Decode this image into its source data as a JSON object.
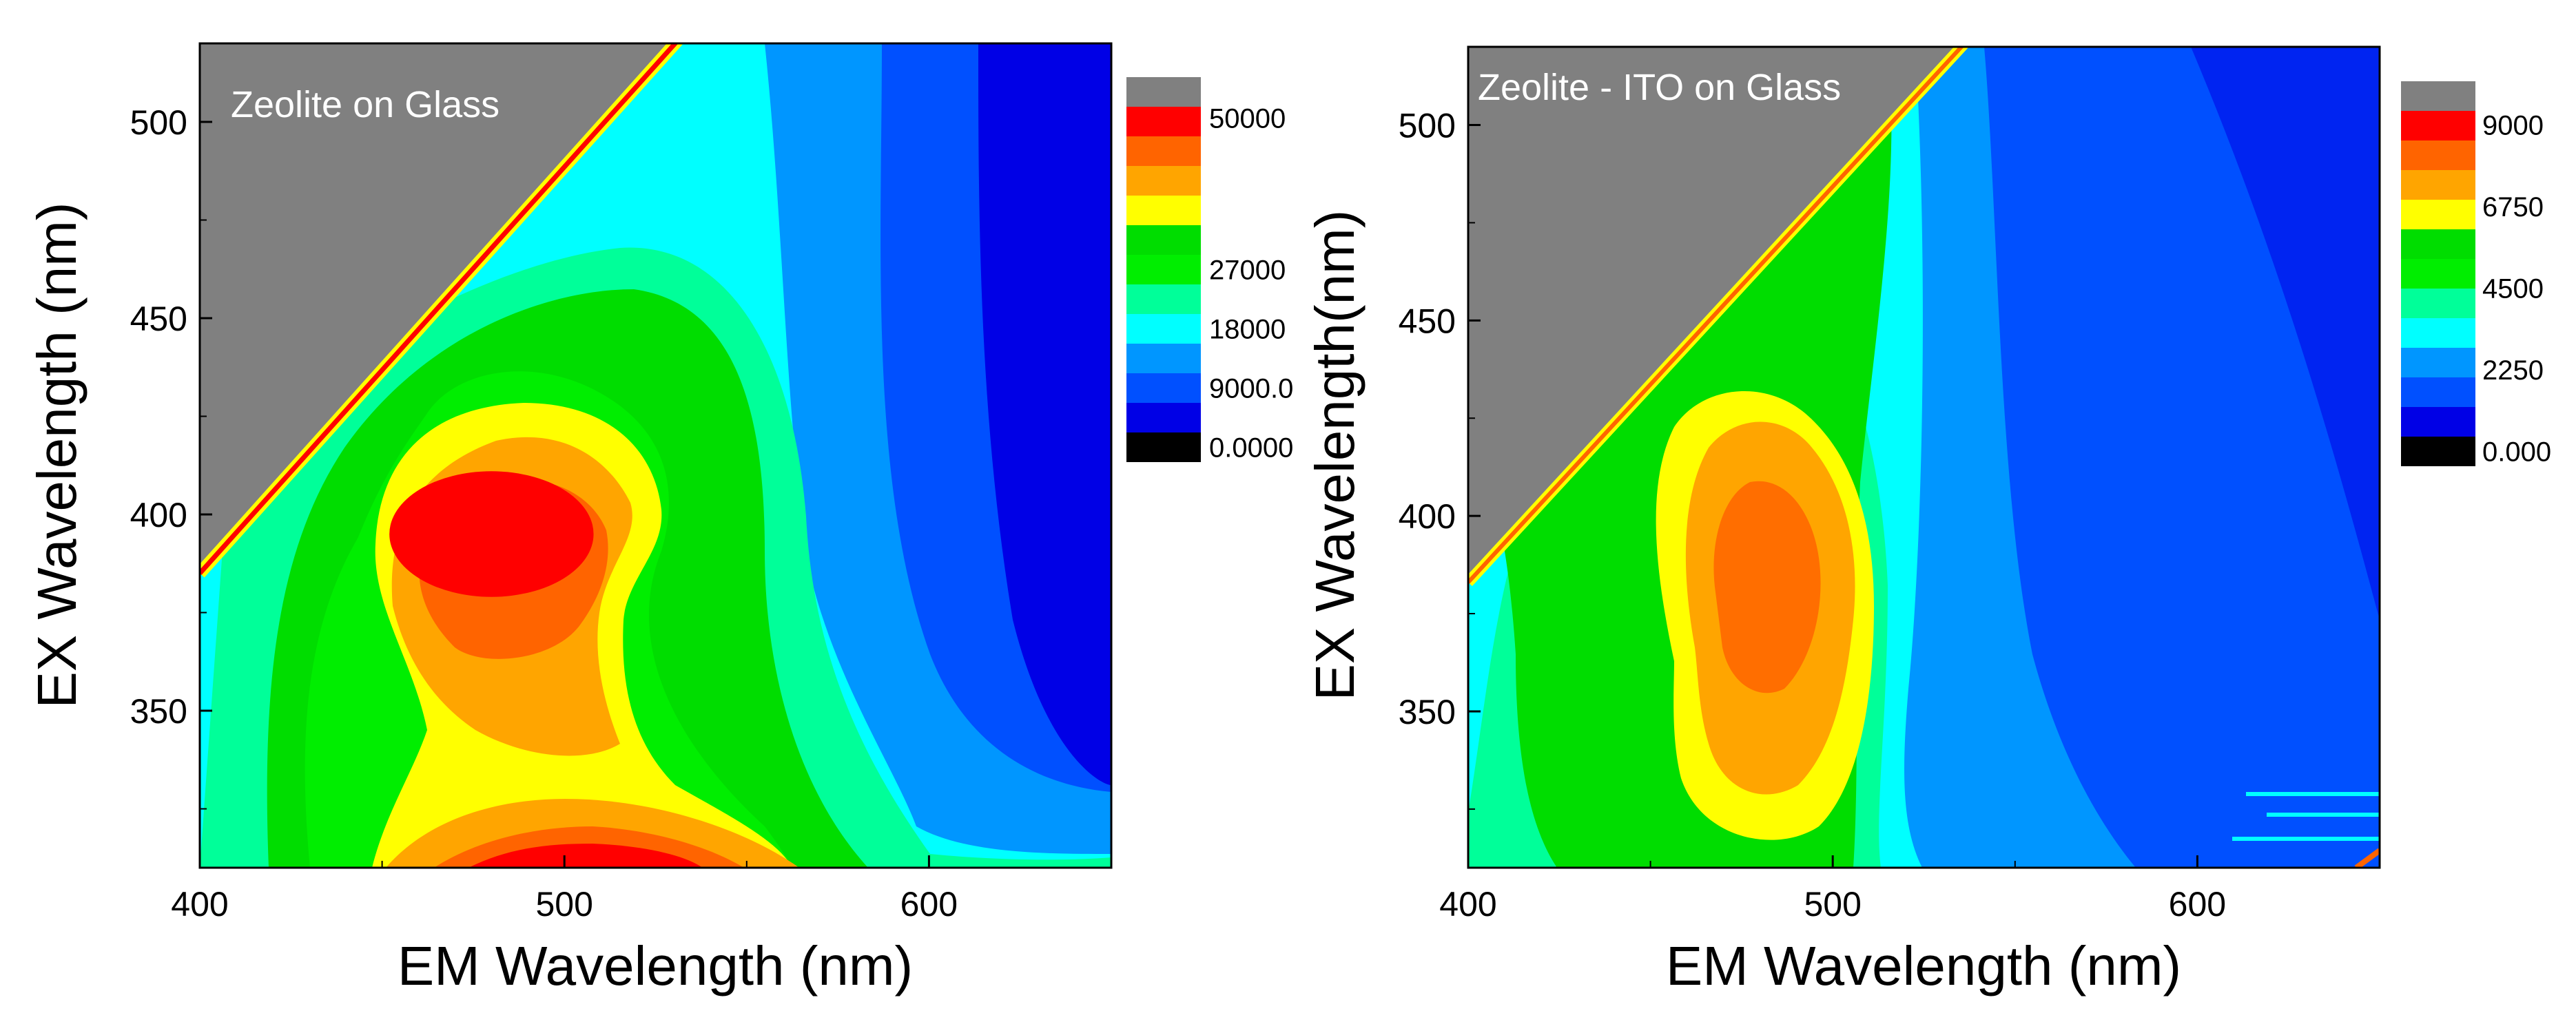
{
  "chart_data": [
    {
      "type": "heatmap",
      "subtype": "excitation-emission contour map",
      "title": "Zeolite on Glass",
      "xlabel": "EM Wavelength (nm)",
      "ylabel": "EX Wavelength (nm)",
      "xlim": [
        400,
        650
      ],
      "ylim": [
        310,
        520
      ],
      "xticks": [
        400,
        500,
        600
      ],
      "yticks": [
        350,
        400,
        450,
        500
      ],
      "colorbar": {
        "range": [
          0,
          54000
        ],
        "tick_values": [
          50000,
          27000,
          18000,
          9000,
          0
        ],
        "tick_labels": [
          "50000",
          "27000",
          "18000",
          "9000.0",
          "0.0000"
        ],
        "levels": [
          "#000000",
          "#0000e6",
          "#0050ff",
          "#0096ff",
          "#00ffff",
          "#00ff99",
          "#00ee00",
          "#00dd00",
          "#ffff00",
          "#ffa500",
          "#ff6400",
          "#ff0000",
          "#808080"
        ]
      },
      "masked_region": {
        "color": "#808080",
        "rule": "EX above Rayleigh line",
        "line": {
          "em": [
            400,
            530
          ],
          "ex": [
            385,
            520
          ]
        }
      },
      "features": [
        {
          "type": "peak",
          "em": 480,
          "ex": 395,
          "level": "#ff0000",
          "rx": 28,
          "ry": 16
        },
        {
          "type": "peak",
          "em": 495,
          "ex": 312,
          "level": "#ff0000",
          "rx": 45,
          "ry": 12
        },
        {
          "type": "scatter_line",
          "em": [
            400,
            530
          ],
          "ex": [
            385,
            520
          ],
          "level": "#ff0000"
        }
      ]
    },
    {
      "type": "heatmap",
      "subtype": "excitation-emission contour map",
      "title": "Zeolite - ITO on Glass",
      "xlabel": "EM Wavelength (nm)",
      "ylabel": "EX Wavelength(nm)",
      "xlim": [
        400,
        650
      ],
      "ylim": [
        310,
        520
      ],
      "xticks": [
        400,
        500,
        600
      ],
      "yticks": [
        350,
        400,
        450,
        500
      ],
      "colorbar": {
        "range": [
          0,
          9800
        ],
        "tick_values": [
          9000,
          6750,
          4500,
          2250,
          0
        ],
        "tick_labels": [
          "9000",
          "6750",
          "4500",
          "2250",
          "0.000"
        ],
        "levels": [
          "#000000",
          "#0000e6",
          "#0050ff",
          "#0096ff",
          "#00ffff",
          "#00ff99",
          "#00ee00",
          "#00dd00",
          "#ffff00",
          "#ffa500",
          "#ff6400",
          "#ff0000",
          "#808080"
        ]
      },
      "masked_region": {
        "color": "#808080",
        "rule": "EX above Rayleigh line",
        "line": {
          "em": [
            400,
            535
          ],
          "ex": [
            383,
            520
          ]
        }
      },
      "features": [
        {
          "type": "peak",
          "em": 480,
          "ex": 390,
          "level": "#ff6400",
          "rx": 15,
          "ry": 24
        },
        {
          "type": "scatter_line",
          "em": [
            400,
            535
          ],
          "ex": [
            383,
            520
          ],
          "level": "#ff6400"
        }
      ]
    }
  ]
}
